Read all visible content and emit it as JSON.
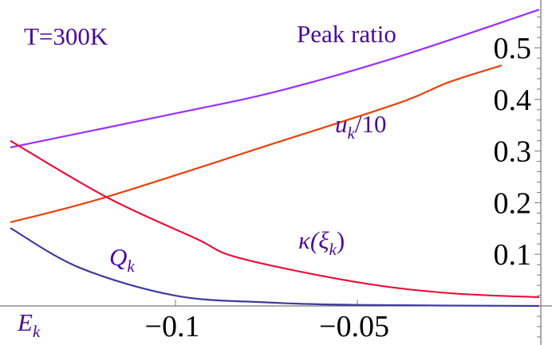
{
  "chart_data": {
    "type": "line",
    "title": "",
    "xlabel": "",
    "ylabel": "",
    "xlim": [
      -0.1454,
      0
    ],
    "ylim": [
      -0.1,
      0.59
    ],
    "grid": false,
    "x_ticks": [
      -0.1,
      -0.05
    ],
    "x_tick_labels": [
      "−0.1",
      "−0.05"
    ],
    "y_ticks": [
      0.1,
      0.2,
      0.3,
      0.4,
      0.5
    ],
    "y_tick_labels": [
      "0.1",
      "0.2",
      "0.3",
      "0.4",
      "0.5"
    ],
    "annotations": {
      "temperature": "T=300K",
      "peak_ratio": "Peak ratio",
      "u_main": "u",
      "u_sub": "k",
      "u_rest": "/10",
      "kappa_main": "κ(ξ",
      "kappa_sub": "k",
      "kappa_rest": ")",
      "q_main": "Q",
      "q_sub": "k",
      "e_main": "E",
      "e_sub": "k"
    },
    "series": [
      {
        "key": "peak_ratio",
        "color": "#9b30ff",
        "x": [
          -0.1454,
          -0.1,
          -0.0724,
          -0.0386,
          0
        ],
        "y": [
          0.307,
          0.373,
          0.415,
          0.483,
          0.574
        ]
      },
      {
        "key": "u_k_over_10",
        "color": "#e8420e",
        "x": [
          -0.1454,
          -0.119,
          -0.0724,
          -0.0386,
          -0.025,
          -0.0103
        ],
        "y": [
          0.162,
          0.211,
          0.316,
          0.393,
          0.433,
          0.466
        ]
      },
      {
        "key": "kappa",
        "color": "#e8103c",
        "x": [
          -0.1454,
          -0.119,
          -0.0945,
          -0.0825,
          -0.05,
          -0.025,
          0
        ],
        "y": [
          0.32,
          0.211,
          0.131,
          0.093,
          0.046,
          0.025,
          0.017
        ]
      },
      {
        "key": "Q_k",
        "color": "#3c3c9e",
        "x": [
          -0.1454,
          -0.1263,
          -0.1,
          -0.075,
          -0.05,
          0
        ],
        "y": [
          0.151,
          0.074,
          0.02,
          0.007,
          0.002,
          0
        ]
      }
    ]
  }
}
